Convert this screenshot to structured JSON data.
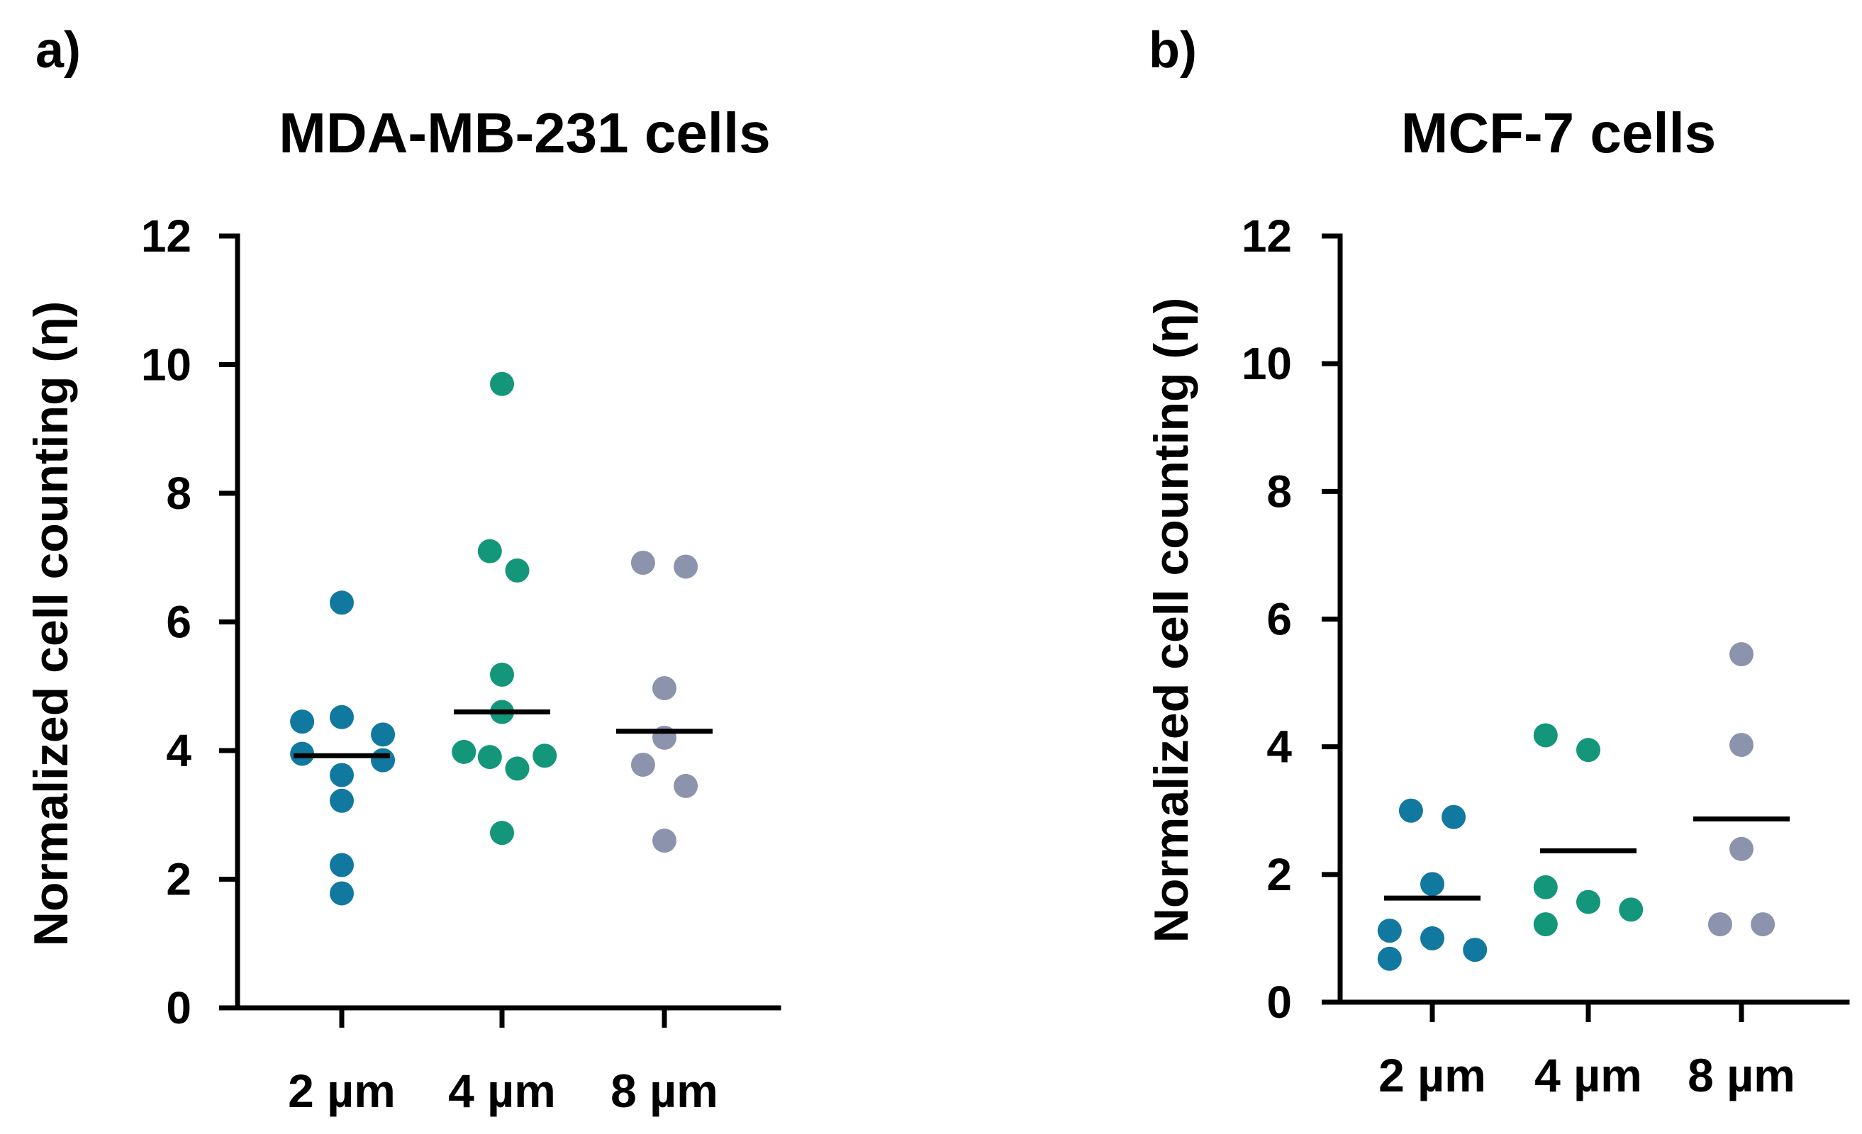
{
  "chart_data": [
    {
      "type": "scatter",
      "panel_label": "a)",
      "title": "MDA-MB-231 cells",
      "ylabel": "Normalized cell counting (η)",
      "xlabel": "",
      "ylim": [
        0,
        12
      ],
      "yticks": [
        0,
        2,
        4,
        6,
        8,
        10,
        12
      ],
      "grid": false,
      "categories": [
        "2 µm",
        "4 µm",
        "8 µm"
      ],
      "series": [
        {
          "category": "2 µm",
          "color": "#1178a0",
          "mean": 3.92,
          "points": [
            {
              "dx": 0.0,
              "y": 6.3
            },
            {
              "dx": -0.26,
              "y": 4.45
            },
            {
              "dx": 0.0,
              "y": 4.52
            },
            {
              "dx": 0.27,
              "y": 4.25
            },
            {
              "dx": -0.26,
              "y": 3.95
            },
            {
              "dx": 0.27,
              "y": 3.85
            },
            {
              "dx": 0.0,
              "y": 3.62
            },
            {
              "dx": 0.0,
              "y": 3.22
            },
            {
              "dx": 0.0,
              "y": 2.22
            },
            {
              "dx": 0.0,
              "y": 1.78
            }
          ]
        },
        {
          "category": "4 µm",
          "color": "#13967a",
          "mean": 4.6,
          "points": [
            {
              "dx": 0.0,
              "y": 9.7
            },
            {
              "dx": -0.08,
              "y": 7.1
            },
            {
              "dx": 0.1,
              "y": 6.8
            },
            {
              "dx": 0.0,
              "y": 5.18
            },
            {
              "dx": 0.0,
              "y": 4.6
            },
            {
              "dx": -0.25,
              "y": 3.98
            },
            {
              "dx": -0.08,
              "y": 3.9
            },
            {
              "dx": 0.28,
              "y": 3.92
            },
            {
              "dx": 0.1,
              "y": 3.72
            },
            {
              "dx": 0.0,
              "y": 2.72
            }
          ]
        },
        {
          "category": "8 µm",
          "color": "#8c93ac",
          "mean": 4.3,
          "points": [
            {
              "dx": -0.14,
              "y": 6.92
            },
            {
              "dx": 0.14,
              "y": 6.86
            },
            {
              "dx": 0.0,
              "y": 4.97
            },
            {
              "dx": 0.0,
              "y": 4.2
            },
            {
              "dx": -0.14,
              "y": 3.78
            },
            {
              "dx": 0.14,
              "y": 3.45
            },
            {
              "dx": 0.0,
              "y": 2.6
            }
          ]
        }
      ]
    },
    {
      "type": "scatter",
      "panel_label": "b)",
      "title": "MCF-7 cells",
      "ylabel": "Normalized cell counting (η)",
      "xlabel": "",
      "ylim": [
        0,
        12
      ],
      "yticks": [
        0,
        2,
        4,
        6,
        8,
        10,
        12
      ],
      "grid": false,
      "categories": [
        "2 µm",
        "4 µm",
        "8 µm"
      ],
      "series": [
        {
          "category": "2 µm",
          "color": "#1178a0",
          "mean": 1.63,
          "points": [
            {
              "dx": -0.14,
              "y": 3.0
            },
            {
              "dx": 0.14,
              "y": 2.9
            },
            {
              "dx": 0.0,
              "y": 1.85
            },
            {
              "dx": -0.28,
              "y": 1.12
            },
            {
              "dx": 0.0,
              "y": 1.0
            },
            {
              "dx": 0.28,
              "y": 0.82
            },
            {
              "dx": -0.28,
              "y": 0.68
            }
          ]
        },
        {
          "category": "4 µm",
          "color": "#13967a",
          "mean": 2.37,
          "points": [
            {
              "dx": -0.28,
              "y": 4.18
            },
            {
              "dx": 0.0,
              "y": 3.95
            },
            {
              "dx": -0.28,
              "y": 1.8
            },
            {
              "dx": 0.0,
              "y": 1.57
            },
            {
              "dx": 0.28,
              "y": 1.45
            },
            {
              "dx": -0.28,
              "y": 1.22
            }
          ]
        },
        {
          "category": "8 µm",
          "color": "#8c93ac",
          "mean": 2.87,
          "points": [
            {
              "dx": 0.0,
              "y": 5.45
            },
            {
              "dx": 0.0,
              "y": 4.03
            },
            {
              "dx": 0.0,
              "y": 2.4
            },
            {
              "dx": -0.14,
              "y": 1.22
            },
            {
              "dx": 0.14,
              "y": 1.22
            }
          ]
        }
      ]
    }
  ]
}
